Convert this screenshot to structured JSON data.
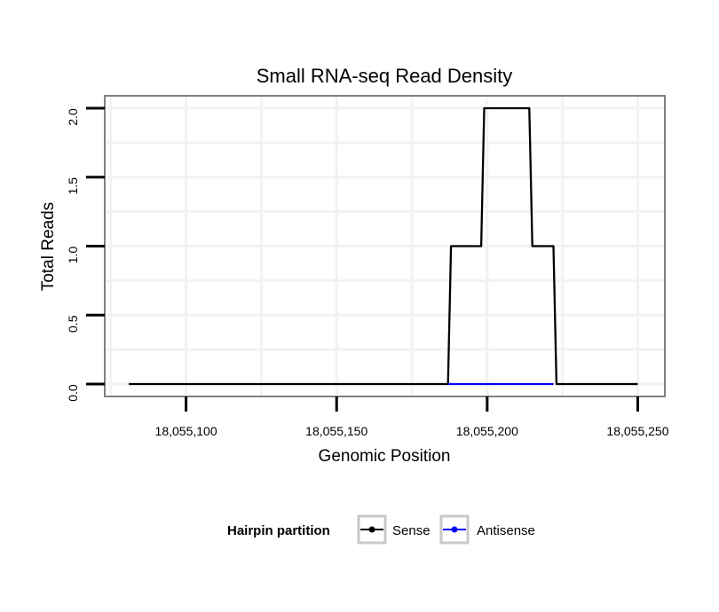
{
  "chart_data": {
    "type": "line",
    "title": "Small RNA-seq Read Density",
    "xlabel": "Genomic Position",
    "ylabel": "Total Reads",
    "xlim": [
      18055073,
      18055259
    ],
    "ylim": [
      -0.09,
      2.09
    ],
    "x_ticks": [
      18055100,
      18055150,
      18055200,
      18055250
    ],
    "x_tick_labels": [
      "18,055,100",
      "18,055,150",
      "18,055,200",
      "18,055,250"
    ],
    "y_ticks": [
      0,
      0.5,
      1,
      1.5,
      2
    ],
    "y_tick_labels": [
      "0.0",
      "0.5",
      "1.0",
      "1.5",
      "2.0"
    ],
    "grid": true,
    "legend": {
      "title": "Hairpin partition",
      "position": "bottom",
      "entries": [
        {
          "name": "Sense",
          "color": "#000000"
        },
        {
          "name": "Antisense",
          "color": "#0000ff"
        }
      ]
    },
    "series": [
      {
        "name": "Sense",
        "color": "#000000",
        "x": [
          18055081,
          18055187,
          18055188,
          18055198,
          18055199,
          18055214,
          18055215,
          18055222,
          18055223,
          18055250
        ],
        "y": [
          0,
          0,
          1,
          1,
          2,
          2,
          1,
          1,
          0,
          0
        ]
      },
      {
        "name": "Antisense",
        "color": "#0000ff",
        "x": [
          18055187,
          18055222
        ],
        "y": [
          0,
          0
        ]
      }
    ]
  }
}
